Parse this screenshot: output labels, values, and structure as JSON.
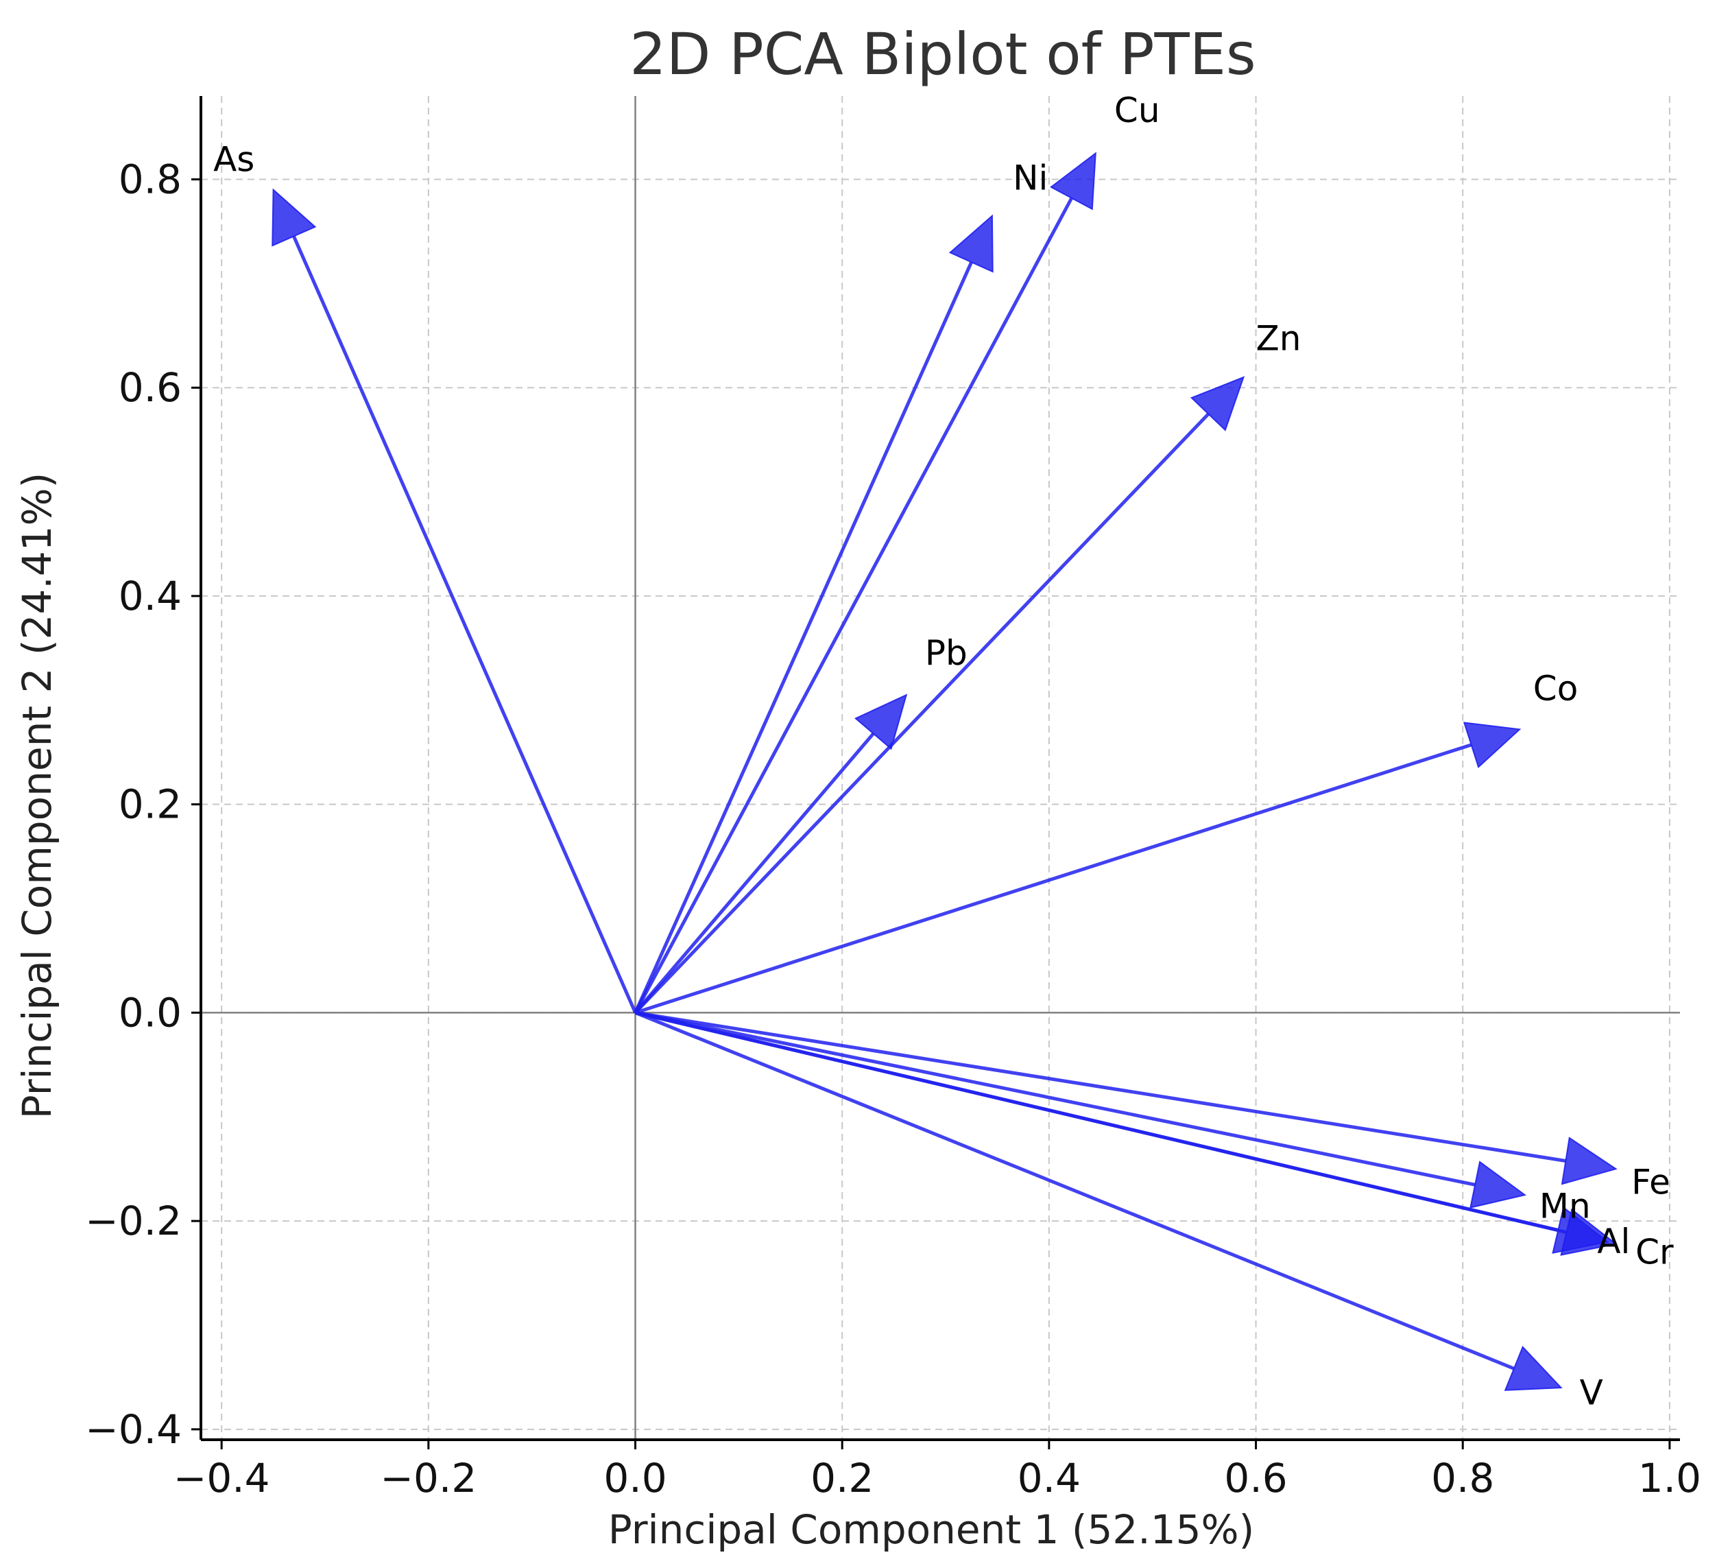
{
  "chart_data": {
    "type": "biplot",
    "title": "2D PCA Biplot of PTEs",
    "xlabel": "Principal Component 1 (52.15%)",
    "ylabel": "Principal Component 2 (24.41%)",
    "xlim": [
      -0.42,
      1.01
    ],
    "ylim": [
      -0.41,
      0.88
    ],
    "xticks": [
      -0.4,
      -0.2,
      0.0,
      0.2,
      0.4,
      0.6,
      0.8,
      1.0
    ],
    "yticks": [
      -0.4,
      -0.2,
      0.0,
      0.2,
      0.4,
      0.6,
      0.8
    ],
    "xtick_labels": [
      "−0.4",
      "−0.2",
      "0.0",
      "0.2",
      "0.4",
      "0.6",
      "0.8",
      "1.0"
    ],
    "ytick_labels": [
      "−0.4",
      "−0.2",
      "0.0",
      "0.2",
      "0.4",
      "0.6",
      "0.8"
    ],
    "grid": true,
    "vectors": [
      {
        "name": "As",
        "x": -0.35,
        "y": 0.79
      },
      {
        "name": "Ni",
        "x": 0.345,
        "y": 0.765
      },
      {
        "name": "Cu",
        "x": 0.445,
        "y": 0.825
      },
      {
        "name": "Zn",
        "x": 0.588,
        "y": 0.61
      },
      {
        "name": "Pb",
        "x": 0.262,
        "y": 0.305
      },
      {
        "name": "Co",
        "x": 0.855,
        "y": 0.272
      },
      {
        "name": "Fe",
        "x": 0.948,
        "y": -0.15
      },
      {
        "name": "Mn",
        "x": 0.86,
        "y": -0.175
      },
      {
        "name": "Al",
        "x": 0.94,
        "y": -0.22
      },
      {
        "name": "Cr",
        "x": 0.948,
        "y": -0.222
      },
      {
        "name": "V",
        "x": 0.895,
        "y": -0.36
      }
    ],
    "label_positions": {
      "As": [
        -0.408,
        0.808
      ],
      "Ni": [
        0.365,
        0.79
      ],
      "Cu": [
        0.463,
        0.855
      ],
      "Zn": [
        0.6,
        0.636
      ],
      "Pb": [
        0.28,
        0.334
      ],
      "Co": [
        0.868,
        0.3
      ],
      "Fe": [
        0.963,
        -0.174
      ],
      "Mn": [
        0.874,
        -0.197
      ],
      "Al": [
        0.93,
        -0.231
      ],
      "Cr": [
        0.967,
        -0.241
      ],
      "V": [
        0.913,
        -0.376
      ]
    },
    "vector_color": "#2020ee",
    "grid_color": "#c8c8c8",
    "axis_color": "#000000",
    "zero_line_color": "#808080"
  }
}
